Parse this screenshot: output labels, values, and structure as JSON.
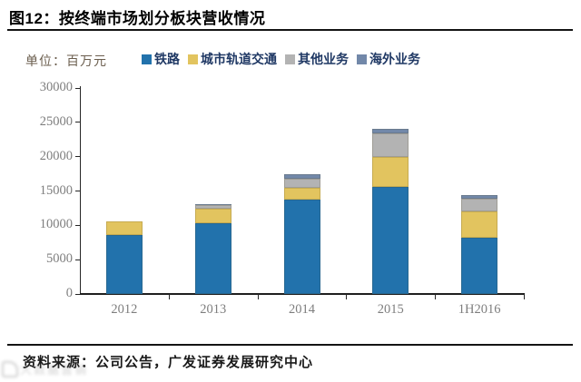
{
  "header": {
    "title": "图12：按终端市场划分板块营收情况"
  },
  "unit_label": "单位：百万元",
  "chart_data": {
    "type": "bar",
    "stacked": true,
    "categories": [
      "2012",
      "2013",
      "2014",
      "2015",
      "1H2016"
    ],
    "series": [
      {
        "name": "铁路",
        "color": "#2272ac",
        "values": [
          8650,
          10250,
          13700,
          15650,
          8250
        ]
      },
      {
        "name": "城市轨道交通",
        "color": "#e2c45f",
        "values": [
          1950,
          2200,
          1800,
          4250,
          3750
        ]
      },
      {
        "name": "其他业务",
        "color": "#b3b3b3",
        "values": [
          0,
          550,
          1300,
          3550,
          1850
        ]
      },
      {
        "name": "海外业务",
        "color": "#7288a9",
        "values": [
          0,
          150,
          700,
          550,
          550
        ]
      }
    ],
    "title": "按终端市场划分板块营收情况",
    "xlabel": "",
    "ylabel": "百万元",
    "ylim": [
      0,
      30000
    ],
    "ytick_step": 5000,
    "grid": false,
    "legend_position": "top"
  },
  "footer": {
    "source_text": "资料来源：公司公告，广发证券发展研究中心"
  },
  "watermark_text": "大数据营销"
}
